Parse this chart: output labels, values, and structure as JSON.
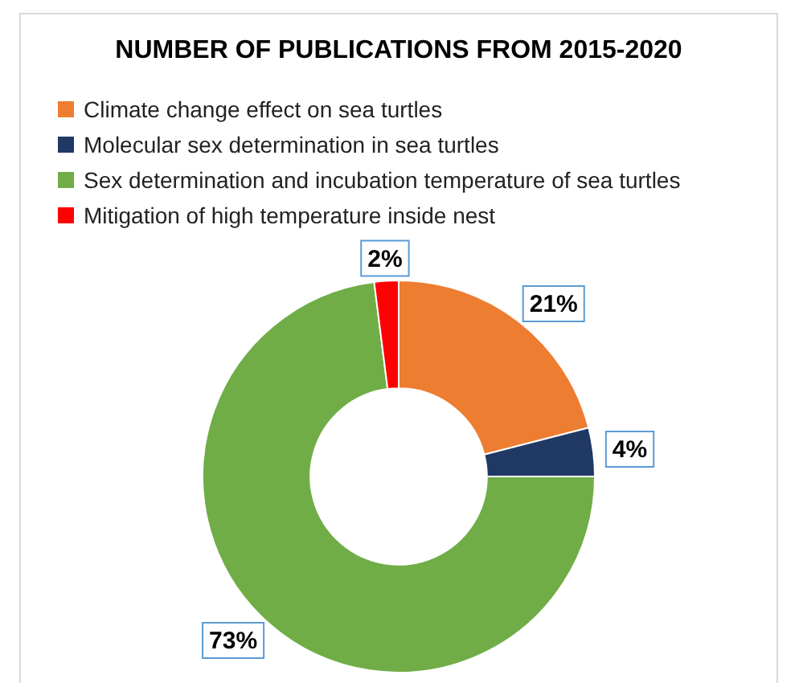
{
  "chart_data": {
    "type": "donut",
    "title": "NUMBER OF PUBLICATIONS FROM 2015-2020",
    "legend": "top left",
    "categories": [
      "Climate change effect on sea turtles",
      "Molecular sex determination in sea turtles",
      "Sex determination and incubation temperature of sea turtles",
      "Mitigation of high temperature inside nest"
    ],
    "values": [
      21,
      4,
      73,
      2
    ],
    "colors": [
      "#ed7d31",
      "#1f3864",
      "#70ad47",
      "#ff0000"
    ],
    "value_labels": [
      "21%",
      "4%",
      "73%",
      "2%"
    ]
  }
}
